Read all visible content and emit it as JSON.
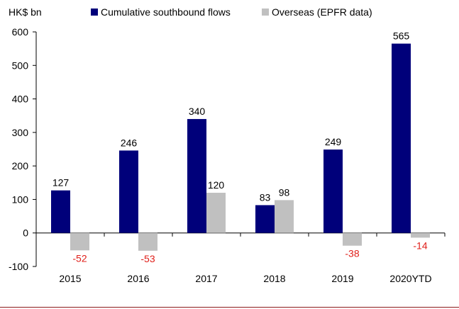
{
  "chart_data": {
    "type": "bar",
    "ylabel": "HK$ bn",
    "ylim": [
      -100,
      600
    ],
    "yticks": [
      -100,
      0,
      100,
      200,
      300,
      400,
      500,
      600
    ],
    "grid": false,
    "legend_position": "top",
    "categories": [
      "2015",
      "2016",
      "2017",
      "2018",
      "2019",
      "2020YTD"
    ],
    "series": [
      {
        "name": "Cumulative southbound flows",
        "color": "#00007a",
        "values": [
          127,
          246,
          340,
          83,
          249,
          565
        ]
      },
      {
        "name": "Overseas (EPFR data)",
        "color": "#c0c0c0",
        "values": [
          -52,
          -53,
          120,
          98,
          -38,
          -14
        ]
      }
    ],
    "label_color_positive": "#000000",
    "label_color_negative": "#e0201b"
  }
}
